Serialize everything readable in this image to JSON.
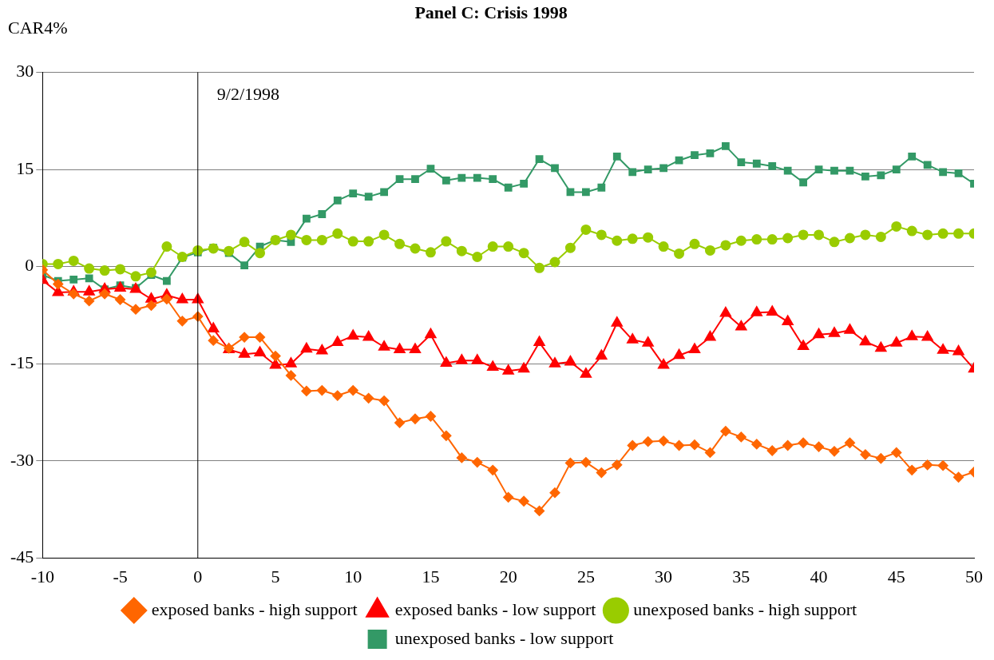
{
  "chart_data": {
    "type": "line",
    "title": "Panel C: Crisis 1998",
    "ylabel": "CAR4%",
    "x": [
      -10,
      -9,
      -8,
      -7,
      -6,
      -5,
      -4,
      -3,
      -2,
      -1,
      0,
      1,
      2,
      3,
      4,
      5,
      6,
      7,
      8,
      9,
      10,
      11,
      12,
      13,
      14,
      15,
      16,
      17,
      18,
      19,
      20,
      21,
      22,
      23,
      24,
      25,
      26,
      27,
      28,
      29,
      30,
      31,
      32,
      33,
      34,
      35,
      36,
      37,
      38,
      39,
      40,
      41,
      42,
      43,
      44,
      45,
      46,
      47,
      48,
      49,
      50
    ],
    "xlim": [
      -10,
      50
    ],
    "xticks": [
      -10,
      -5,
      0,
      5,
      10,
      15,
      20,
      25,
      30,
      35,
      40,
      45,
      50
    ],
    "ylim": [
      -45,
      30
    ],
    "yticks": [
      -45,
      -30,
      -15,
      0,
      15,
      30
    ],
    "grid": "y",
    "legend": "bottom",
    "line_style": "solid",
    "ref_lines": [
      {
        "axis": "x",
        "value": 0,
        "color": "#000000"
      }
    ],
    "annotations": [
      "9/2/1998"
    ],
    "series": [
      {
        "name": "exposed banks - high support",
        "color": "#ff6600",
        "marker": "diamond",
        "values": [
          -0.5,
          -2.7,
          -4.2,
          -5.3,
          -4.2,
          -5.1,
          -6.6,
          -6.0,
          -5.0,
          -8.4,
          -7.7,
          -11.4,
          -12.6,
          -10.9,
          -10.9,
          -13.8,
          -16.8,
          -19.2,
          -19.1,
          -19.9,
          -19.1,
          -20.3,
          -20.7,
          -24.1,
          -23.5,
          -23.1,
          -26.1,
          -29.5,
          -30.2,
          -31.4,
          -35.6,
          -36.2,
          -37.7,
          -34.9,
          -30.3,
          -30.2,
          -31.8,
          -30.6,
          -27.6,
          -27.0,
          -26.9,
          -27.6,
          -27.5,
          -28.7,
          -25.4,
          -26.3,
          -27.4,
          -28.4,
          -27.6,
          -27.2,
          -27.8,
          -28.5,
          -27.2,
          -29.0,
          -29.6,
          -28.7,
          -31.4,
          -30.6,
          -30.7,
          -32.5,
          -31.7
        ]
      },
      {
        "name": "exposed banks - low support",
        "color": "#ff0000",
        "marker": "triangle",
        "values": [
          -2.1,
          -4.0,
          -3.9,
          -3.9,
          -3.5,
          -3.3,
          -3.5,
          -5.0,
          -4.4,
          -5.1,
          -5.1,
          -9.6,
          -12.8,
          -13.5,
          -13.3,
          -15.2,
          -15.0,
          -12.7,
          -13.0,
          -11.7,
          -10.7,
          -10.9,
          -12.4,
          -12.8,
          -12.8,
          -10.5,
          -14.9,
          -14.5,
          -14.5,
          -15.5,
          -16.1,
          -15.8,
          -11.7,
          -15.0,
          -14.7,
          -16.6,
          -13.8,
          -8.7,
          -11.3,
          -11.8,
          -15.2,
          -13.7,
          -12.8,
          -10.9,
          -7.2,
          -9.3,
          -7.1,
          -7.0,
          -8.5,
          -12.3,
          -10.5,
          -10.3,
          -9.8,
          -11.6,
          -12.6,
          -11.8,
          -10.8,
          -10.9,
          -12.9,
          -13.1,
          -15.8
        ]
      },
      {
        "name": "unexposed banks - high support",
        "color": "#99cc00",
        "marker": "circle",
        "values": [
          0.4,
          0.4,
          0.9,
          -0.3,
          -0.6,
          -0.4,
          -1.5,
          -0.9,
          3.1,
          1.5,
          2.5,
          2.8,
          2.4,
          3.8,
          2.1,
          4.1,
          4.9,
          4.1,
          4.1,
          5.1,
          3.9,
          3.9,
          4.9,
          3.5,
          2.8,
          2.2,
          3.9,
          2.4,
          1.5,
          3.1,
          3.1,
          2.1,
          -0.2,
          0.7,
          2.9,
          5.7,
          4.9,
          4.0,
          4.3,
          4.5,
          3.1,
          2.0,
          3.5,
          2.5,
          3.3,
          4.0,
          4.2,
          4.2,
          4.4,
          4.9,
          4.9,
          3.8,
          4.4,
          4.9,
          4.6,
          6.2,
          5.5,
          4.9,
          5.1,
          5.1,
          5.1
        ]
      },
      {
        "name": "unexposed banks - low support",
        "color": "#339966",
        "marker": "square",
        "values": [
          -1.3,
          -2.2,
          -2.0,
          -1.8,
          -3.5,
          -2.9,
          -3.3,
          -1.3,
          -2.2,
          1.4,
          2.2,
          2.9,
          2.1,
          0.2,
          3.1,
          4.1,
          3.8,
          7.4,
          8.1,
          10.2,
          11.3,
          10.8,
          11.5,
          13.5,
          13.5,
          15.1,
          13.3,
          13.7,
          13.7,
          13.5,
          12.2,
          12.8,
          16.6,
          15.2,
          11.5,
          11.5,
          12.2,
          17.0,
          14.6,
          15.0,
          15.2,
          16.4,
          17.2,
          17.5,
          18.6,
          16.1,
          15.9,
          15.5,
          14.8,
          13.0,
          15.0,
          14.8,
          14.8,
          13.9,
          14.1,
          15.0,
          17.0,
          15.7,
          14.6,
          14.4,
          12.8
        ]
      }
    ]
  }
}
